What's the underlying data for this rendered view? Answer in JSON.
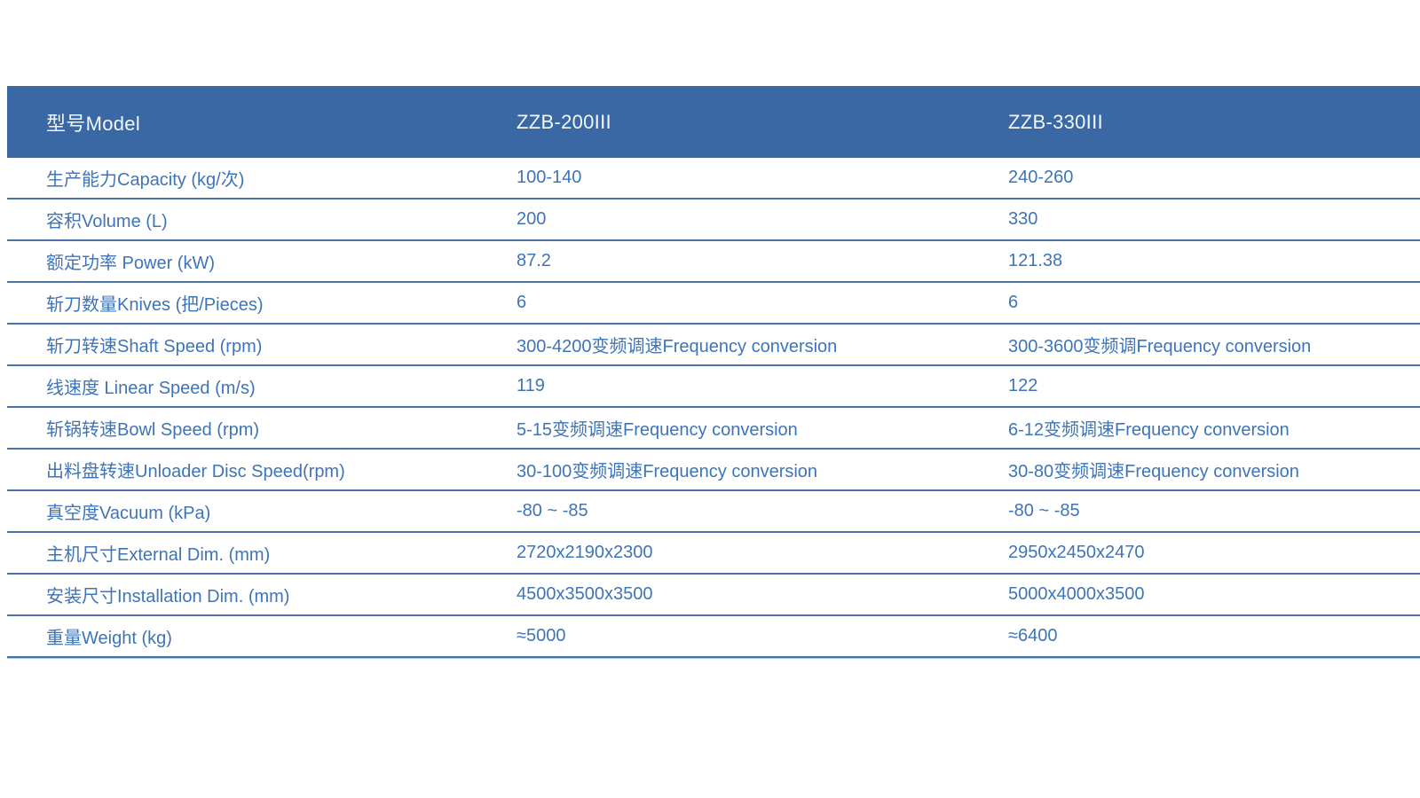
{
  "table": {
    "header": {
      "model_label": "型号Model",
      "model_1": "ZZB-200III",
      "model_2": "ZZB-330III"
    },
    "rows": [
      {
        "label": "生产能力Capacity (kg/次)",
        "v1": "100-140",
        "v2": "240-260"
      },
      {
        "label": "容积Volume (L)",
        "v1": "200",
        "v2": "330"
      },
      {
        "label": "额定功率 Power (kW)",
        "v1": "87.2",
        "v2": "121.38"
      },
      {
        "label": "斩刀数量Knives (把/Pieces)",
        "v1": "6",
        "v2": "6"
      },
      {
        "label": "斩刀转速Shaft Speed (rpm)",
        "v1": "300-4200变频调速Frequency conversion",
        "v2": "300-3600变频调Frequency conversion"
      },
      {
        "label": "线速度 Linear Speed (m/s)",
        "v1": "119",
        "v2": "122"
      },
      {
        "label": "斩锅转速Bowl Speed (rpm)",
        "v1": "5-15变频调速Frequency conversion",
        "v2": "6-12变频调速Frequency conversion"
      },
      {
        "label": "出料盘转速Unloader Disc Speed(rpm)",
        "v1": "30-100变频调速Frequency conversion",
        "v2": "30-80变频调速Frequency conversion"
      },
      {
        "label": "真空度Vacuum (kPa)",
        "v1": "-80 ~ -85",
        "v2": "-80 ~ -85"
      },
      {
        "label": "主机尺寸External Dim. (mm)",
        "v1": "2720x2190x2300",
        "v2": "2950x2450x2470"
      },
      {
        "label": "安装尺寸Installation Dim. (mm)",
        "v1": "4500x3500x3500",
        "v2": "5000x4000x3500"
      },
      {
        "label": "重量Weight (kg)",
        "v1": "≈5000",
        "v2": "≈6400"
      }
    ],
    "colors": {
      "header_bg": "#3A68A4",
      "header_text": "#F3F6FA",
      "row_text": "#3E74B8",
      "divider_dark": "#4A74A9",
      "divider_light": "#A9C5E1"
    }
  }
}
